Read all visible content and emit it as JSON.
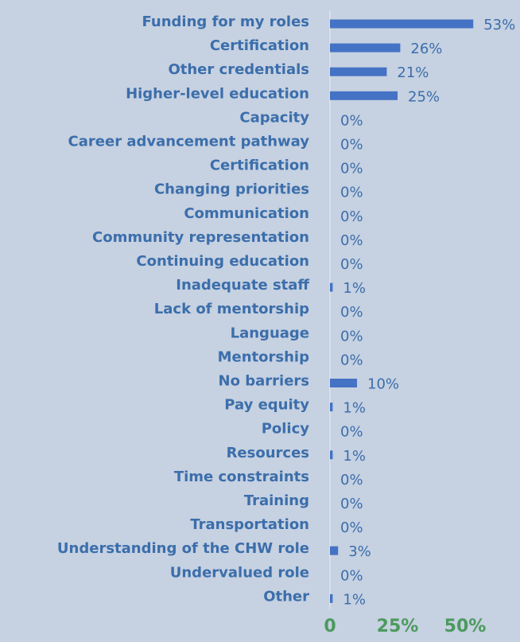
{
  "chart_data": {
    "type": "barh",
    "categories": [
      "Funding for my roles",
      "Certification",
      "Other credentials",
      "Higher-level education",
      "Capacity",
      "Career advancement pathway",
      "Certification",
      "Changing priorities",
      "Communication",
      "Community representation",
      "Continuing education",
      "Inadequate staff",
      "Lack of mentorship",
      "Language",
      "Mentorship",
      "No barriers",
      "Pay equity",
      "Policy",
      "Resources",
      "Time constraints",
      "Training",
      "Transportation",
      "Understanding of the CHW role",
      "Undervalued role",
      "Other"
    ],
    "values": [
      53,
      26,
      21,
      25,
      0,
      0,
      0,
      0,
      0,
      0,
      0,
      1,
      0,
      0,
      0,
      10,
      1,
      0,
      1,
      0,
      0,
      0,
      3,
      0,
      1
    ],
    "value_labels": [
      "53%",
      "26%",
      "21%",
      "25%",
      "0%",
      "0%",
      "0%",
      "0%",
      "0%",
      "0%",
      "0%",
      "1%",
      "0%",
      "0%",
      "0%",
      "10%",
      "1%",
      "0%",
      "1%",
      "0%",
      "0%",
      "0%",
      "3%",
      "0%",
      "1%"
    ],
    "color": "#4472c4",
    "xlim": [
      0,
      70
    ],
    "xticks": [
      0,
      {
        "value": 25,
        "label": "25%"
      },
      {
        "value": 50,
        "label": "50%"
      }
    ]
  }
}
